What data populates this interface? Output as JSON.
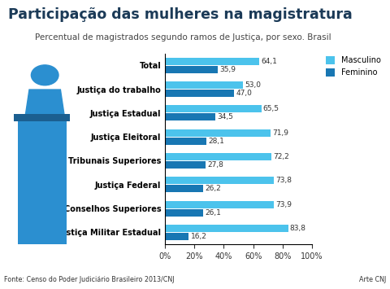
{
  "chart_data": {
    "type": "bar",
    "orientation": "horizontal",
    "title": "Participação das mulheres na magistratura",
    "subtitle": "Percentual de magistrados segundo ramos de Justiça, por sexo. Brasil",
    "annotations": [
      "Fonte: Censo do Poder Judiciário Brasileiro 2013/CNJ",
      "Arte CNJ"
    ],
    "categories": [
      "Total",
      "Justiça do trabalho",
      "Justiça Estadual",
      "Justiça Eleitoral",
      "Tribunais Superiores",
      "Justiça Federal",
      "Conselhos Superiores",
      "Justiça Militar Estadual"
    ],
    "series": [
      {
        "name": "Masculino",
        "color": "#4cc3ec",
        "values": [
          64.1,
          53.0,
          65.5,
          71.9,
          72.2,
          73.8,
          73.9,
          83.8
        ],
        "value_labels": [
          "64,1",
          "53,0",
          "65,5",
          "71,9",
          "72,2",
          "73,8",
          "73,9",
          "83,8"
        ]
      },
      {
        "name": "Feminino",
        "color": "#1877b3",
        "values": [
          35.9,
          47.0,
          34.5,
          28.1,
          27.8,
          26.2,
          26.1,
          16.2
        ],
        "value_labels": [
          "35,9",
          "47,0",
          "34,5",
          "28,1",
          "27,8",
          "26,2",
          "26,1",
          "16,2"
        ]
      }
    ],
    "xlim": [
      0,
      100
    ],
    "xticks": [
      {
        "value": 0,
        "label": "0%"
      },
      {
        "value": 20,
        "label": "20%"
      },
      {
        "value": 40,
        "label": "40%"
      },
      {
        "value": 60,
        "label": "60%"
      },
      {
        "value": 80,
        "label": "80%"
      },
      {
        "value": 100,
        "label": "100%"
      }
    ],
    "grid": false,
    "legend": "upper right",
    "data_labels": true
  }
}
